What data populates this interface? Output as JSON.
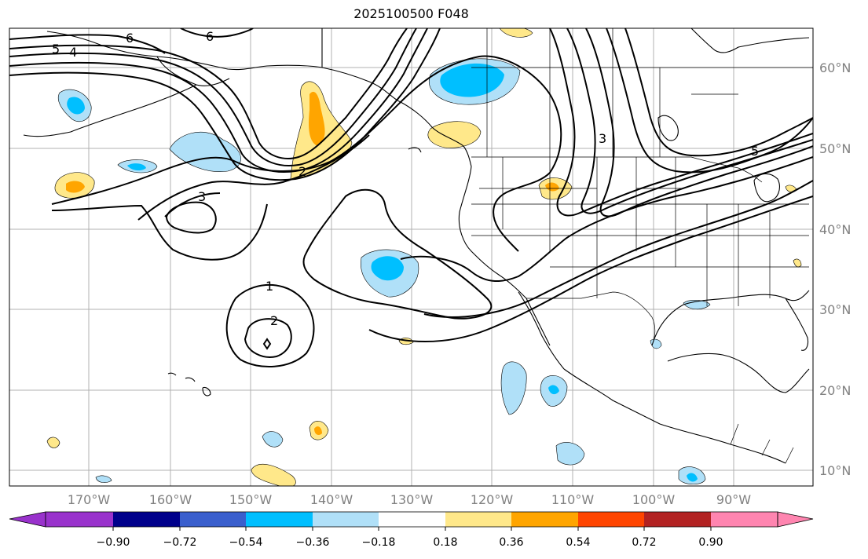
{
  "title": "2025100500 F048",
  "lon_labels": [
    "170°W",
    "160°W",
    "150°W",
    "140°W",
    "130°W",
    "120°W",
    "110°W",
    "100°W",
    "90°W"
  ],
  "lat_labels": [
    "60°N",
    "50°N",
    "40°N",
    "30°N",
    "20°N",
    "10°N"
  ],
  "colorbar": {
    "ticks": [
      "−0.90",
      "−0.72",
      "−0.54",
      "−0.36",
      "−0.18",
      "0.18",
      "0.36",
      "0.54",
      "0.72",
      "0.90"
    ],
    "colors": [
      "#9932cc",
      "#00008b",
      "#3a5fcd",
      "#00bfff",
      "#b0e0f8",
      "#ffffff",
      "#ffe88a",
      "#ffa500",
      "#ff4500",
      "#b22222",
      "#ff85b0"
    ]
  },
  "contour_labels": [
    "6",
    "6",
    "5",
    "4",
    "3",
    "2",
    "1",
    "2",
    "3",
    "5"
  ],
  "colors": {
    "grid": "#b0b0b0",
    "land": "#000000",
    "contour": "#000000"
  }
}
